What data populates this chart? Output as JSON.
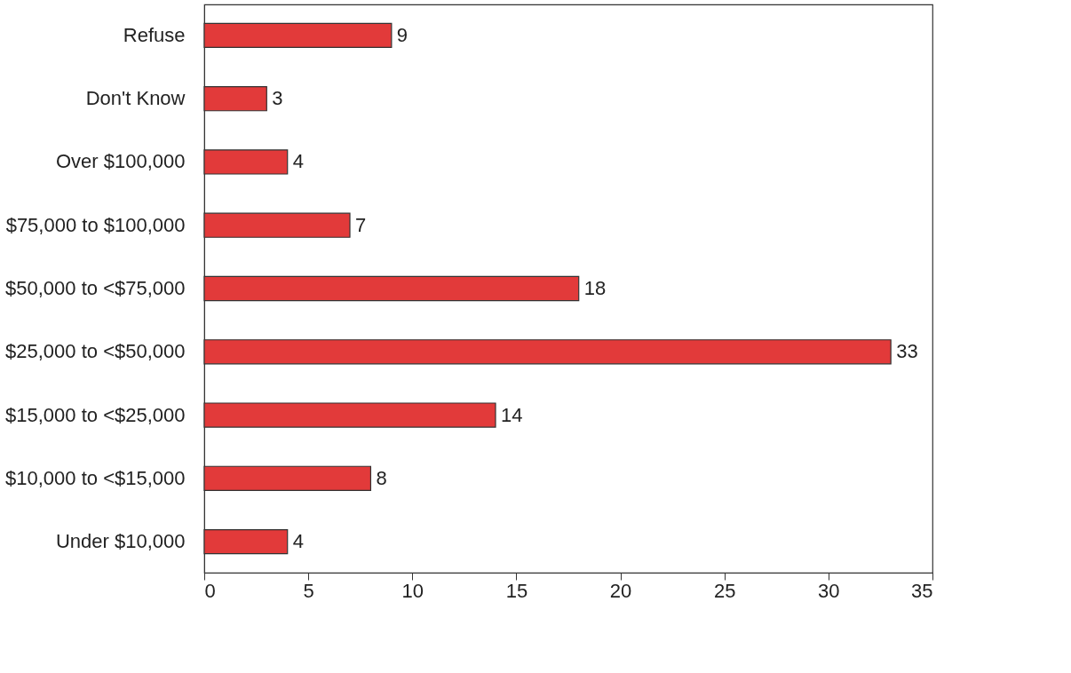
{
  "chart_data": {
    "type": "bar",
    "orientation": "horizontal",
    "categories": [
      "Refuse",
      "Don't Know",
      "Over $100,000",
      "$75,000 to $100,000",
      "$50,000 to <$75,000",
      "$25,000 to <$50,000",
      "$15,000 to <$25,000",
      "$10,000 to <$15,000",
      "Under $10,000"
    ],
    "values": [
      9,
      3,
      4,
      7,
      18,
      33,
      14,
      8,
      4
    ],
    "color": "#e23a3a",
    "xlim": [
      0,
      35
    ],
    "xticks": [
      0,
      5,
      10,
      15,
      20,
      25,
      30,
      35
    ],
    "data_labels": true,
    "grid": false
  }
}
